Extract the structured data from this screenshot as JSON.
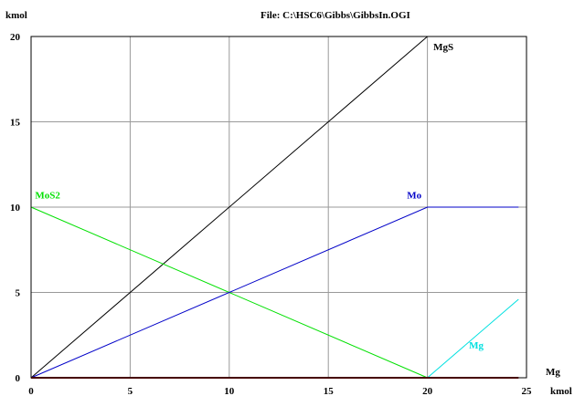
{
  "chart_data": {
    "type": "line",
    "title": "File: C:\\HSC6\\Gibbs\\GibbsIn.OGI",
    "ylabel": "kmol",
    "xlabel_name": "Mg",
    "xlabel_unit": "kmol",
    "xlim": [
      0,
      25
    ],
    "ylim": [
      0,
      20
    ],
    "x_ticks": [
      "0",
      "5",
      "10",
      "15",
      "20",
      "25"
    ],
    "y_ticks": [
      "0",
      "5",
      "10",
      "15",
      "20"
    ],
    "grid": true,
    "series": [
      {
        "name": "MgS",
        "color": "#000000",
        "x": [
          0,
          20
        ],
        "y": [
          0,
          20
        ]
      },
      {
        "name": "MoS2",
        "color": "#00e000",
        "x": [
          0,
          20
        ],
        "y": [
          10,
          0
        ]
      },
      {
        "name": "Mo",
        "color": "#0000c8",
        "x": [
          0,
          20,
          24.6
        ],
        "y": [
          0,
          10,
          10
        ]
      },
      {
        "name": "Mg",
        "color": "#00e0e0",
        "x": [
          20,
          24.6
        ],
        "y": [
          0,
          4.6
        ]
      },
      {
        "name": "",
        "color": "#8b0000",
        "x": [
          0,
          24.6
        ],
        "y": [
          0,
          0
        ]
      }
    ]
  }
}
